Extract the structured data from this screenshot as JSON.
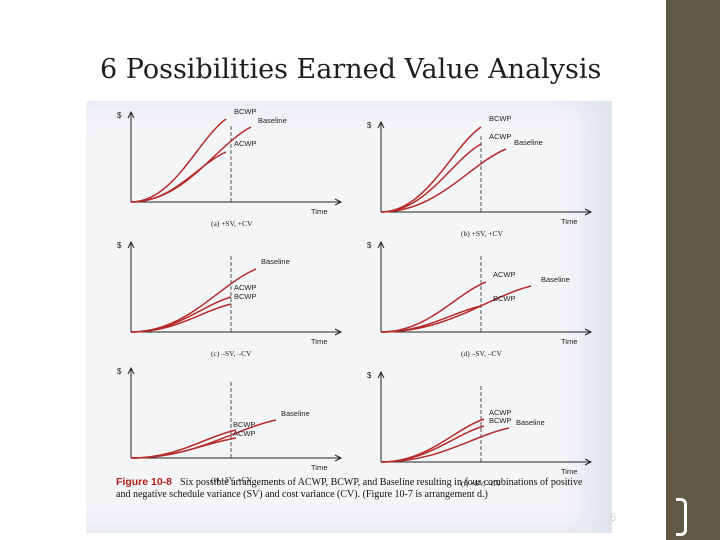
{
  "title": "6 Possibilities Earned Value Analysis",
  "page_number": "6",
  "figure": {
    "axis_y": "$",
    "axis_x": "Time",
    "panels": [
      {
        "id": "a",
        "subtitle": "(a) +SV, +CV",
        "labels": [
          "BCWP",
          "Baseline",
          "ACWP"
        ]
      },
      {
        "id": "b",
        "subtitle": "(b) +SV, +CV",
        "labels": [
          "BCWP",
          "ACWP",
          "Baseline"
        ]
      },
      {
        "id": "c",
        "subtitle": "(c) –SV, –CV",
        "labels": [
          "Baseline",
          "ACWP",
          "BCWP"
        ]
      },
      {
        "id": "d",
        "subtitle": "(d) –SV, –CV",
        "labels": [
          "ACWP",
          "Baseline",
          "BCWP"
        ]
      },
      {
        "id": "e",
        "subtitle": "(e) –SV, +CV",
        "labels": [
          "Baseline",
          "BCWP",
          "ACWP"
        ]
      },
      {
        "id": "f",
        "subtitle": "(f) +SV, –CV",
        "labels": [
          "ACWP",
          "BCWP",
          "Baseline"
        ]
      }
    ],
    "caption_label": "Figure 10-8",
    "caption_text": "Six possible arrangements of ACWP, BCWP, and Baseline resulting in four combinations of positive and negative schedule variance (SV) and cost variance (CV). (Figure 10-7 is arrangement d.)"
  },
  "colors": {
    "curve": "#b52a2a",
    "sidebar": "#5e5a43",
    "figure_label": "#b02018"
  }
}
